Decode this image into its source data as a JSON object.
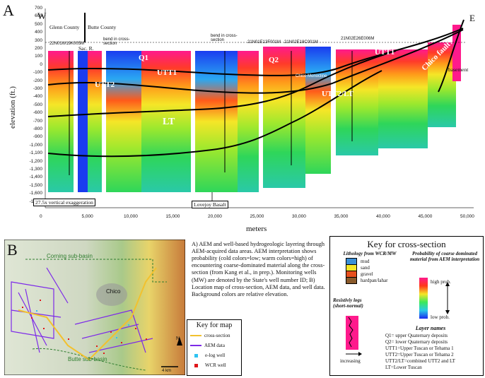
{
  "panel_a": {
    "letter": "A",
    "west_label": "W",
    "east_label": "E",
    "y_axis_label": "elevation (ft.)",
    "y_ticks": [
      "700",
      "600",
      "500",
      "400",
      "300",
      "200",
      "100",
      "0",
      "-100",
      "-200",
      "-300",
      "-400",
      "-500",
      "-600",
      "-700",
      "-800",
      "-900",
      "-1,000",
      "-1,100",
      "-1,200",
      "-1,300",
      "-1,400",
      "-1,500",
      "-1,600",
      "-1,700"
    ],
    "x_axis_label": "meters",
    "x_ticks": [
      "0",
      "5,000",
      "10,000",
      "15,000",
      "20,000",
      "25,000",
      "30,000",
      "35,000",
      "40,000",
      "45,000",
      "50,000"
    ],
    "county_left": "Glenn County",
    "county_right": "Butte County",
    "river": "Sac. R.",
    "bend_1": "bend in cross-section",
    "bend_2": "bend in cross-section",
    "well_1": "22N01W19K005M",
    "well_2": "21N01E13F001M",
    "well_3": "21N02E18C001M",
    "well_4": "21N02E26E006M",
    "layer_q1": "Q1",
    "layer_q2": "Q2",
    "layer_utt1": "UTT1",
    "layer_utt2": "UTT2",
    "layer_utt2lt": "UTT2/LT",
    "layer_lt": "LT",
    "layer_q1_east": "UTT1",
    "fault_label": "Chico fault?",
    "basement": "basement",
    "vert_exag": "27.5x vertical exaggeration",
    "lovejoy": "Lovejoy Basalt",
    "chico_ridge": "Chico Monocline"
  },
  "panel_b": {
    "letter": "B",
    "basin_top": "Corning sub-basin",
    "basin_bottom": "Butte sub-basin",
    "city": "Chico",
    "north": "N",
    "scale": "4 km"
  },
  "caption": "A) AEM and well-based hydrogeologic layering through AEM-acquired data areas. AEM interpretation shows probability (cold colors=low; warm colors=high) of encountering coarse-dominated material along the cross-section (from Kang et al., in prep.). Monitoring wells (MW) are denoted by the State's well number ID; B) Location map of cross-section, AEM data, and well data. Background colors are relative elevation.",
  "map_key": {
    "title": "Key for map",
    "items": [
      {
        "label": "cross-section",
        "color": "#f2c12e"
      },
      {
        "label": "AEM data",
        "color": "#7d2ae8"
      },
      {
        "label": "e-log well",
        "color": "#2ec3f2"
      },
      {
        "label": "WCR well",
        "color": "#e0161a"
      }
    ]
  },
  "xsec_key": {
    "title": "Key for cross-section",
    "lith_title": "Lithology from WCR/MW",
    "lith_items": [
      {
        "label": "mud",
        "color": "#3b8fd6"
      },
      {
        "label": "sand",
        "color": "#f5e627"
      },
      {
        "label": "gravel",
        "color": "#e8501e"
      },
      {
        "label": "hardpan/lahar",
        "color": "#8a5a2b"
      }
    ],
    "prob_title": "Probability of coarse dominated material from AEM interpretation",
    "prob_high": "high prob.",
    "prob_low": "low prob.",
    "res_title": "Resistiviy logs (short-normal)",
    "res_increasing": "increasing",
    "layer_title": "Layer names",
    "layers": [
      "Q1= upper Quaternary deposits",
      "Q2= lower Quaternary deposits",
      "UTT1=Upper Tuscan or Tehama 1",
      "UTT2=Upper Tuscan or Tehama 2",
      "UTT2/LT=combined UTT2 and LT",
      "LT=Lower Tuscan"
    ]
  }
}
